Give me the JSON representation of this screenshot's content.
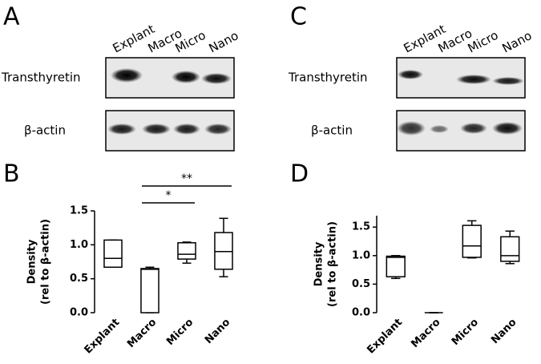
{
  "blots": [
    {
      "panel": "A",
      "lanes": [
        "Explant",
        "Macro",
        "Micro",
        "Nano"
      ],
      "rows": [
        "Transthyretin",
        "β-actin"
      ]
    },
    {
      "panel": "C",
      "lanes": [
        "Explant",
        "Macro",
        "Micro",
        "Nano"
      ],
      "rows": [
        "Transthyretin",
        "β-actin"
      ]
    }
  ],
  "chart_data": [
    {
      "type": "box",
      "panel": "B",
      "ylabel": [
        "Density",
        "(rel to β-actin)"
      ],
      "categories": [
        "Explant",
        "Macro",
        "Micro",
        "Nano"
      ],
      "boxes": [
        {
          "min": 0.67,
          "q1": 0.67,
          "median": 0.8,
          "q3": 1.07,
          "max": 1.07
        },
        {
          "min": 0,
          "q1": 0,
          "median": 0.64,
          "q3": 0.65,
          "max": 0.67
        },
        {
          "min": 0.73,
          "q1": 0.79,
          "median": 0.86,
          "q3": 1.03,
          "max": 1.04
        },
        {
          "min": 0.53,
          "q1": 0.64,
          "median": 0.9,
          "q3": 1.18,
          "max": 1.39
        }
      ],
      "significance": [
        {
          "label": "**",
          "between": [
            1,
            3
          ]
        },
        {
          "label": "*",
          "between": [
            1,
            2
          ]
        }
      ],
      "ylim": [
        0,
        1.5
      ],
      "yticks": [
        {
          "value": 0,
          "label": "0.0"
        },
        0.5,
        {
          "value": 1,
          "label": "1.0"
        },
        1.5
      ]
    },
    {
      "type": "box",
      "panel": "D",
      "ylabel": [
        "Density",
        "(rel to β-actin)"
      ],
      "categories": [
        "Explant",
        "Macro",
        "Micro",
        "Nano"
      ],
      "boxes": [
        {
          "min": 0.6,
          "q1": 0.63,
          "median": 0.97,
          "q3": 0.99,
          "max": 1.0
        },
        {
          "min": 0,
          "q1": 0,
          "median": 0,
          "q3": 0,
          "max": 0
        },
        {
          "min": 0.96,
          "q1": 0.97,
          "median": 1.17,
          "q3": 1.53,
          "max": 1.61
        },
        {
          "min": 0.86,
          "q1": 0.9,
          "median": 1.0,
          "q3": 1.33,
          "max": 1.43
        }
      ],
      "significance": [],
      "ylim": [
        0,
        1.7
      ],
      "yticks": [
        {
          "value": 0,
          "label": "0.0"
        },
        0.5,
        {
          "value": 1,
          "label": "1.0"
        },
        1.5
      ]
    }
  ]
}
